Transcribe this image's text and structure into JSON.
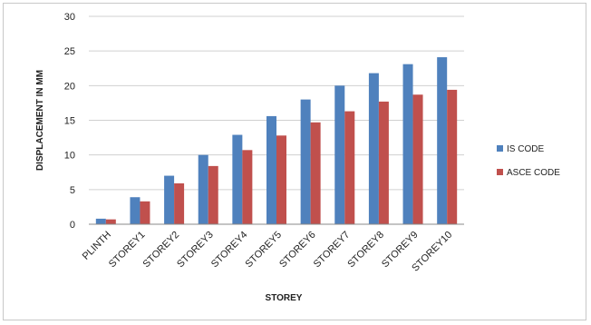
{
  "chart_data": {
    "type": "bar",
    "categories": [
      "PLINTH",
      "STOREY1",
      "STOREY2",
      "STOREY3",
      "STOREY4",
      "STOREY5",
      "STOREY6",
      "STOREY7",
      "STOREY8",
      "STOREY9",
      "STOREY10"
    ],
    "series": [
      {
        "name": "IS CODE",
        "color": "#4f81bd",
        "values": [
          0.8,
          3.9,
          7.0,
          10.0,
          12.9,
          15.6,
          18.0,
          20.0,
          21.8,
          23.1,
          24.1
        ]
      },
      {
        "name": "ASCE CODE",
        "color": "#c0504d",
        "values": [
          0.7,
          3.3,
          5.9,
          8.4,
          10.7,
          12.8,
          14.7,
          16.3,
          17.7,
          18.7,
          19.4
        ]
      }
    ],
    "xlabel": "STOREY",
    "ylabel": "DISPLACEMENT IN MM",
    "ylim": [
      0,
      30
    ],
    "yticks": [
      0,
      5,
      10,
      15,
      20,
      25,
      30
    ],
    "grid": true,
    "legend": "right"
  }
}
